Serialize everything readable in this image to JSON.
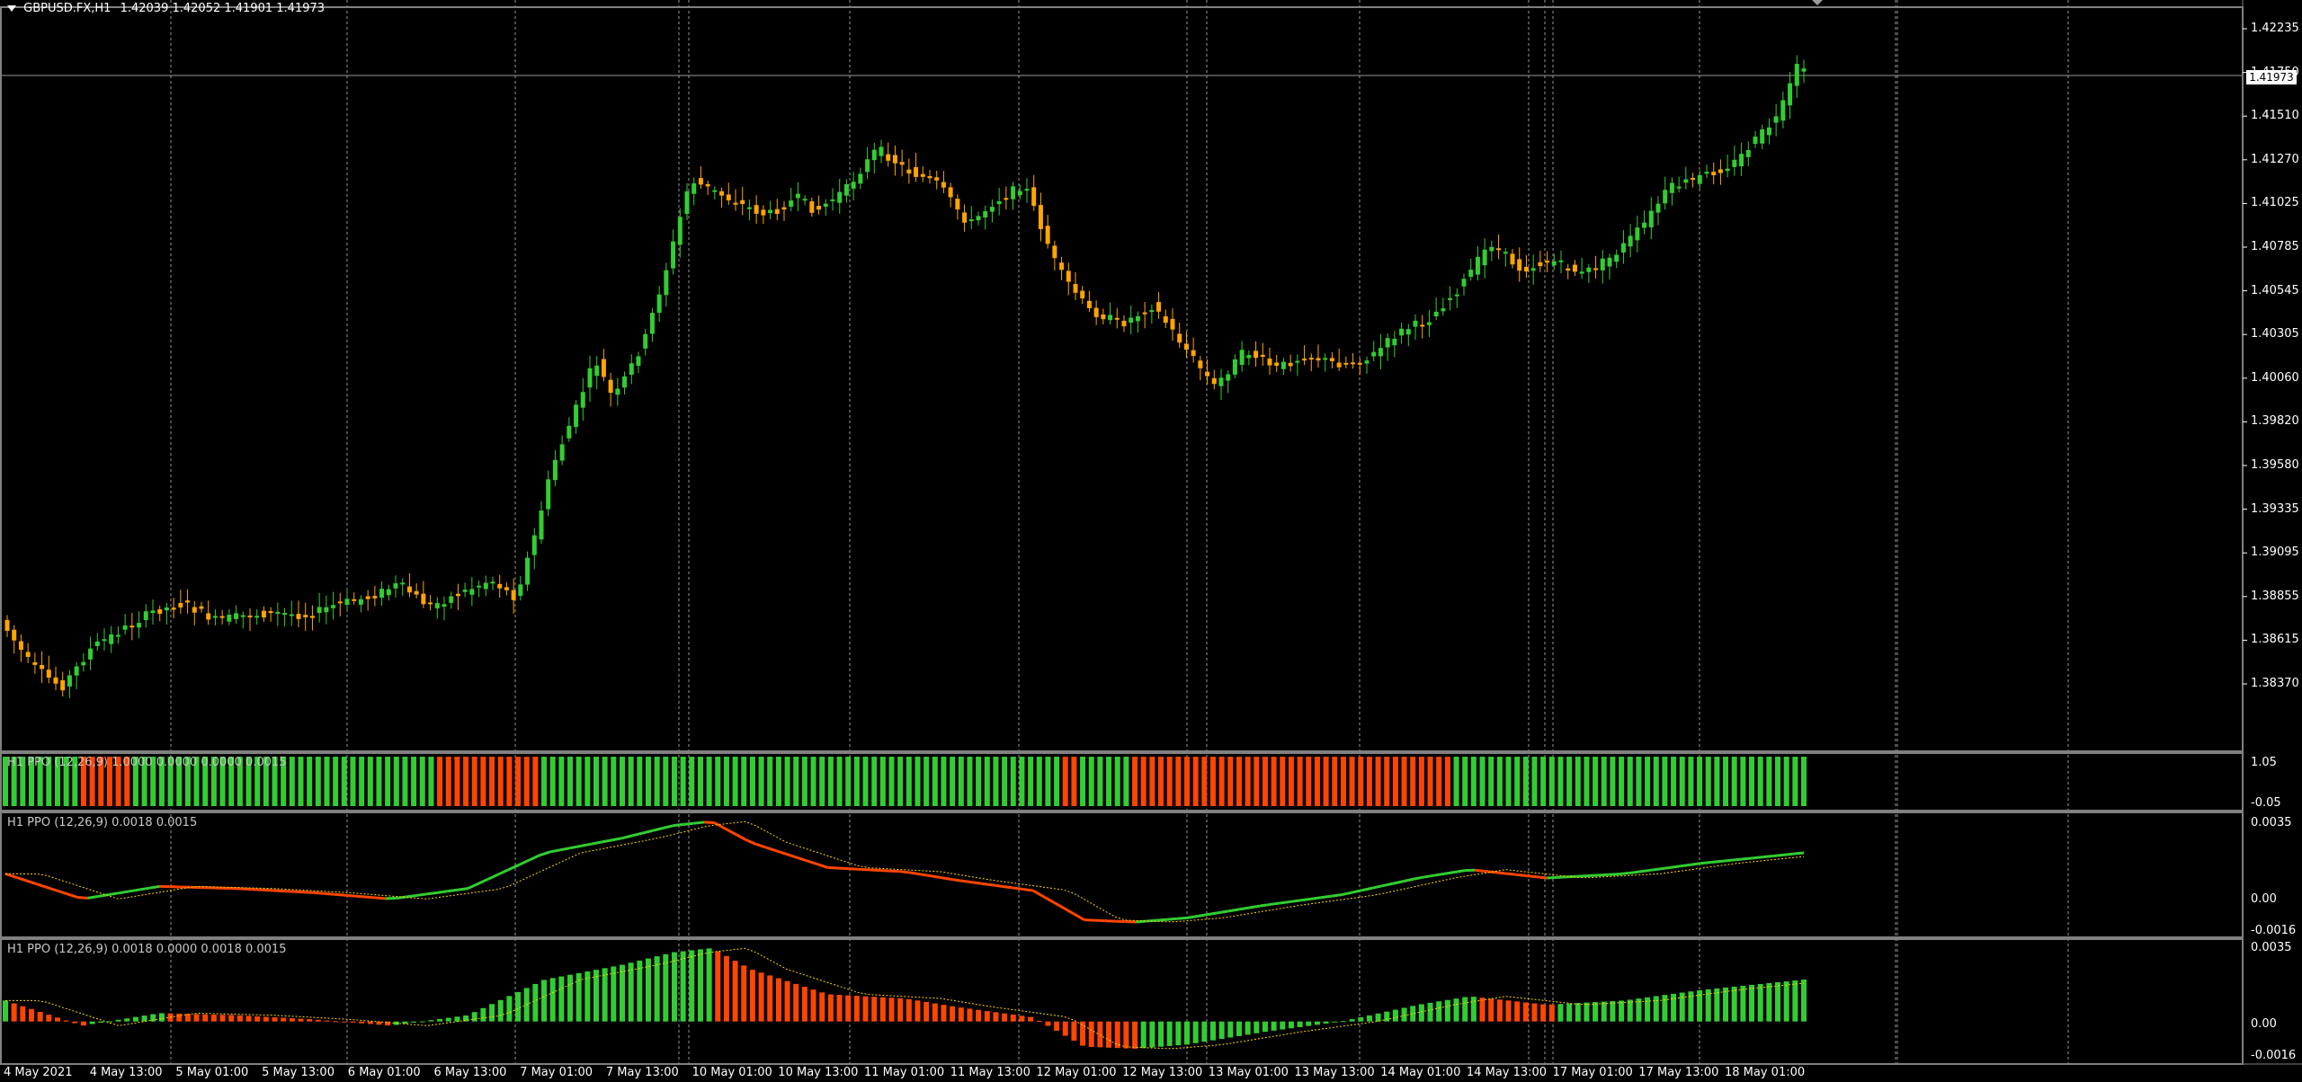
{
  "header": {
    "symbol": "GBPUSD.FX,H1",
    "ohlc": "1.42039 1.42052 1.41901 1.41973"
  },
  "price_axis": {
    "labels": [
      "1.42235",
      "1.41750",
      "1.41510",
      "1.41270",
      "1.41025",
      "1.40785",
      "1.40545",
      "1.40305",
      "1.40060",
      "1.39820",
      "1.39580",
      "1.39335",
      "1.39095",
      "1.38855",
      "1.38615",
      "1.38370"
    ],
    "current_price": "1.41973"
  },
  "time_axis": {
    "labels": [
      "4 May 2021",
      "4 May 13:00",
      "5 May 01:00",
      "5 May 13:00",
      "6 May 01:00",
      "6 May 13:00",
      "7 May 01:00",
      "7 May 13:00",
      "10 May 01:00",
      "10 May 13:00",
      "11 May 01:00",
      "11 May 13:00",
      "12 May 01:00",
      "12 May 13:00",
      "13 May 01:00",
      "13 May 13:00",
      "14 May 01:00",
      "14 May 13:00",
      "17 May 01:00",
      "17 May 13:00",
      "18 May 01:00"
    ]
  },
  "panes": {
    "ppo_histogram_colors": {
      "title": "H1 PPO (12,26,9) 1.0000 0.0000 0.0000 0.0015",
      "scale_top": "1.05",
      "scale_bottom": "-0.05"
    },
    "ppo_lines": {
      "title": "H1 PPO (12,26,9) 0.0018 0.0015",
      "scale": [
        "0.0035",
        "0.00",
        "-0.0016"
      ]
    },
    "ppo_histogram": {
      "title": "H1 PPO (12,26,9) 0.0018 0.0000 0.0018 0.0015",
      "scale": [
        "0.0035",
        "0.00",
        "-0.0016"
      ]
    }
  },
  "colors": {
    "background": "#000000",
    "bull": "#32cd32",
    "bear": "#ffa500",
    "ppo_up": "#32cd32",
    "ppo_down": "#ff4500",
    "signal": "#ffd700",
    "grid": "#c0c0c0",
    "pane_border": "#808080"
  }
}
